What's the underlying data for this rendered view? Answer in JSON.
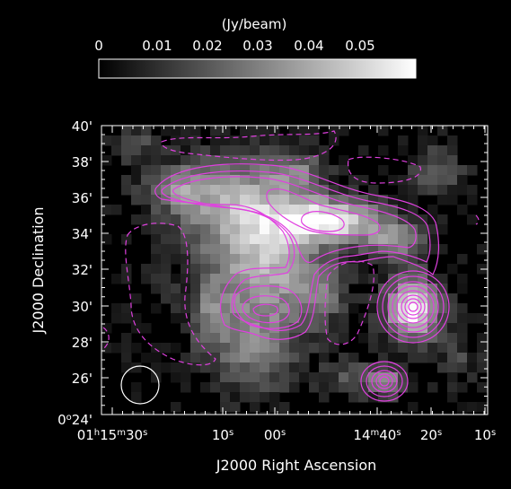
{
  "colorbar": {
    "unit_label": "(Jy/beam)",
    "ticks": [
      "0",
      "0.01",
      "0.02",
      "0.03",
      "0.04",
      "0.05"
    ]
  },
  "axes": {
    "y_title": "J2000 Declination",
    "x_title": "J2000 Right Ascension",
    "y_ticks": [
      "40'",
      "38'",
      "36'",
      "34'",
      "32'",
      "30'",
      "28'",
      "26'"
    ],
    "y_bottom": {
      "deg": "0",
      "sup": "o",
      "min": "24'"
    },
    "x_ticks": [
      {
        "h": "01",
        "hs": "h",
        "m": "15",
        "ms": "m",
        "s": "30",
        "ss": "s"
      },
      {
        "s": "10",
        "ss": "s"
      },
      {
        "s": "00",
        "ss": "s"
      },
      {
        "m": "14",
        "ms": "m",
        "s": "40",
        "ss": "s"
      },
      {
        "s": "20",
        "ss": "s"
      },
      {
        "s": "10",
        "ss": "s"
      }
    ]
  },
  "colors": {
    "contour": "#e040e0",
    "background": "#000000",
    "frame": "#ffffff"
  },
  "overlays": {
    "beam": "beam-ellipse",
    "contours_positive": "solid",
    "contours_negative": "dashed"
  }
}
